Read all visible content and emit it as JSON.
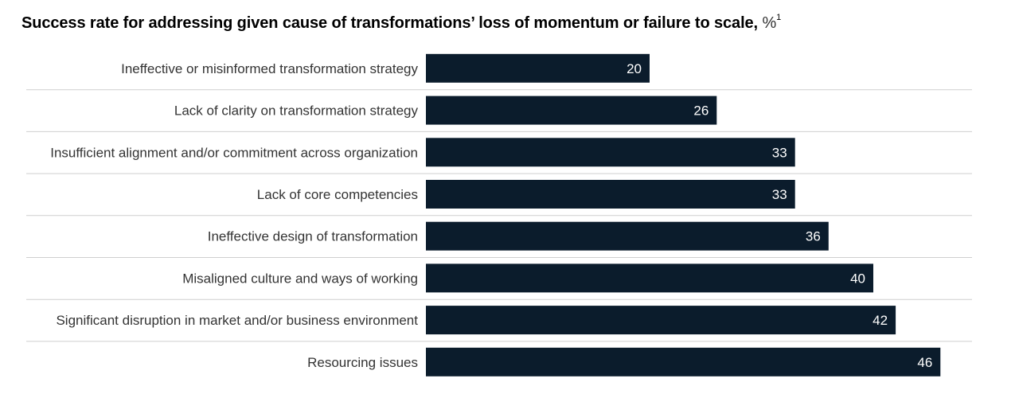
{
  "title": {
    "text": "Success rate for addressing given cause of transformations’ loss of momentum or failure to scale,",
    "unit": " %",
    "footnote": "1"
  },
  "colors": {
    "bar": "#0b1c2c",
    "divider": "#cfcfcf",
    "label": "#333333",
    "value_label": "#ffffff"
  },
  "chart_data": {
    "type": "bar",
    "orientation": "horizontal",
    "title": "Success rate for addressing given cause of transformations’ loss of momentum or failure to scale, %",
    "categories": [
      "Ineffective or misinformed transformation strategy",
      "Lack of clarity on transformation strategy",
      "Insufficient alignment and/or commitment across organization",
      "Lack of core competencies",
      "Ineffective design of transformation",
      "Misaligned culture and ways of working",
      "Significant disruption in market and/or business environment",
      "Resourcing issues"
    ],
    "values": [
      20,
      26,
      33,
      33,
      36,
      40,
      42,
      46
    ],
    "data_labels": [
      "20",
      "26",
      "33",
      "33",
      "36",
      "40",
      "42",
      "46"
    ],
    "xlim": [
      0,
      46
    ],
    "grid": false,
    "legend": "none"
  }
}
